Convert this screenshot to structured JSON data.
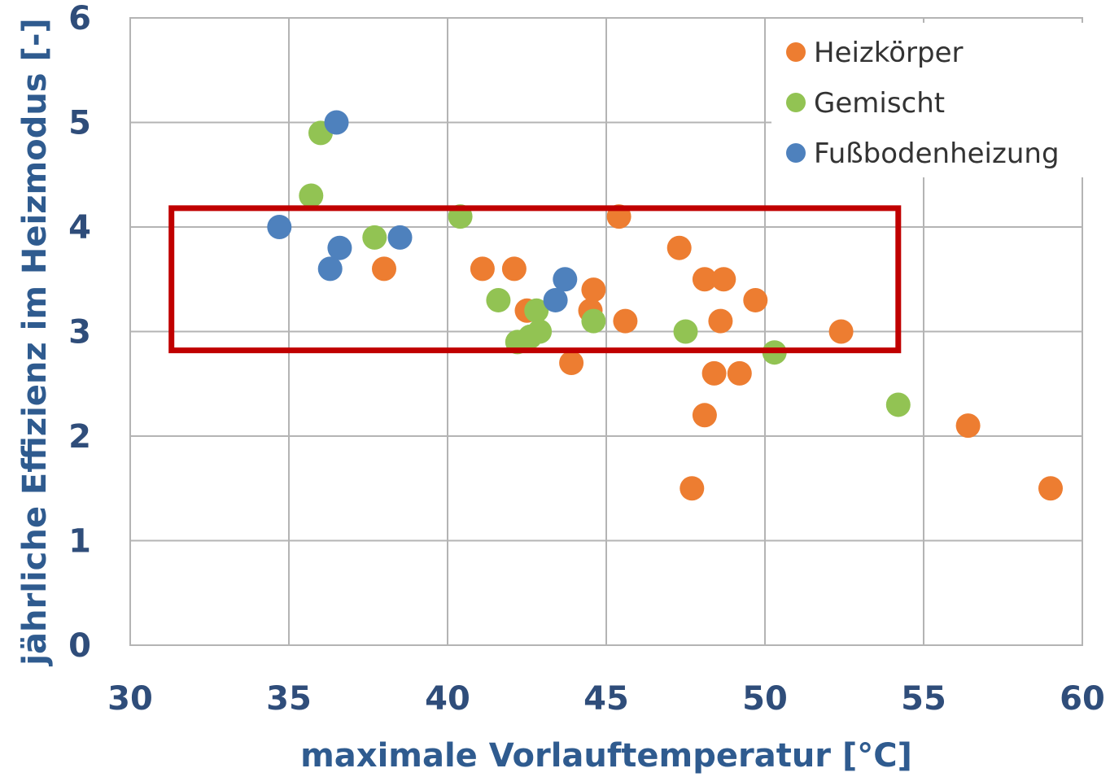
{
  "chart_data": {
    "type": "scatter",
    "xlabel": "maximale Vorlauftemperatur [°C]",
    "ylabel": "jährliche Effizienz im Heizmodus [-]",
    "xlim": [
      30,
      60
    ],
    "ylim": [
      0,
      6
    ],
    "x_ticks": [
      "30",
      "35",
      "40",
      "45",
      "50",
      "55",
      "60"
    ],
    "y_ticks": [
      "0",
      "1",
      "2",
      "3",
      "4",
      "5",
      "6"
    ],
    "grid": true,
    "legend_position": "top-right",
    "highlight_box": {
      "x": [
        31.3,
        54.2
      ],
      "y": [
        2.82,
        4.18
      ],
      "color": "#c00000"
    },
    "series": [
      {
        "name": "Heizkörper",
        "color": "#ed7d31",
        "points": [
          [
            38.0,
            3.6
          ],
          [
            41.1,
            3.6
          ],
          [
            42.1,
            3.6
          ],
          [
            42.5,
            3.2
          ],
          [
            43.9,
            2.7
          ],
          [
            44.5,
            3.2
          ],
          [
            44.6,
            3.4
          ],
          [
            45.4,
            4.1
          ],
          [
            45.6,
            3.1
          ],
          [
            47.3,
            3.8
          ],
          [
            47.7,
            1.5
          ],
          [
            48.1,
            3.5
          ],
          [
            48.1,
            2.2
          ],
          [
            48.4,
            2.6
          ],
          [
            48.7,
            3.5
          ],
          [
            48.6,
            3.1
          ],
          [
            49.2,
            2.6
          ],
          [
            49.7,
            3.3
          ],
          [
            52.4,
            3.0
          ],
          [
            56.4,
            2.1
          ],
          [
            59.0,
            1.5
          ]
        ]
      },
      {
        "name": "Gemischt",
        "color": "#92c353",
        "points": [
          [
            35.7,
            4.3
          ],
          [
            36.0,
            4.9
          ],
          [
            37.7,
            3.9
          ],
          [
            40.4,
            4.1
          ],
          [
            41.6,
            3.3
          ],
          [
            42.2,
            2.9
          ],
          [
            42.6,
            2.95
          ],
          [
            42.8,
            3.2
          ],
          [
            42.9,
            3.0
          ],
          [
            44.6,
            3.1
          ],
          [
            47.5,
            3.0
          ],
          [
            50.3,
            2.8
          ],
          [
            54.2,
            2.3
          ]
        ]
      },
      {
        "name": "Fußbodenheizung",
        "color": "#4e81bd",
        "points": [
          [
            34.7,
            4.0
          ],
          [
            36.3,
            3.6
          ],
          [
            36.5,
            5.0
          ],
          [
            36.6,
            3.8
          ],
          [
            38.5,
            3.9
          ],
          [
            43.4,
            3.3
          ],
          [
            43.7,
            3.5
          ]
        ]
      }
    ]
  }
}
